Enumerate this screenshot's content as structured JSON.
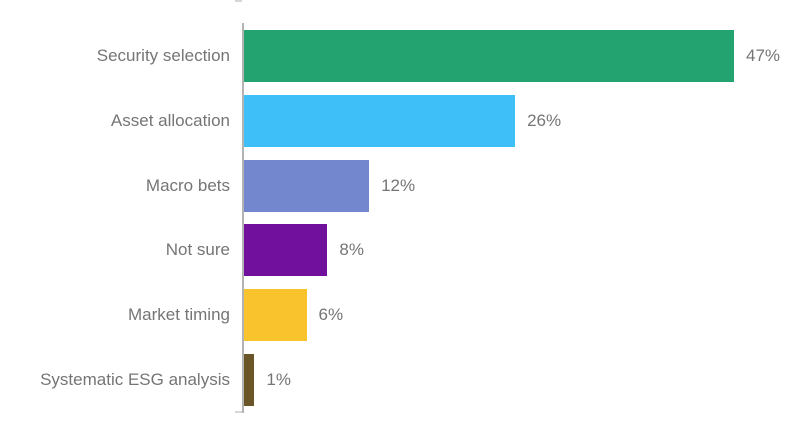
{
  "chart_data": {
    "type": "bar",
    "orientation": "horizontal",
    "title": "",
    "xlabel": "",
    "ylabel": "",
    "categories": [
      "Security selection",
      "Asset allocation",
      "Macro bets",
      "Not sure",
      "Market timing",
      "Systematic ESG analysis"
    ],
    "values": [
      47,
      26,
      12,
      8,
      6,
      1
    ],
    "value_labels": [
      "47%",
      "26%",
      "12%",
      "8%",
      "6%",
      "1%"
    ],
    "unit": "%",
    "xlim": [
      0,
      47
    ],
    "grid": false,
    "legend": false,
    "colors": [
      "#22A370",
      "#3EBFF8",
      "#7387CE",
      "#71109D",
      "#F9C32E",
      "#6A5627"
    ],
    "text_color": "#757575",
    "axis_color": "#b3b3b3",
    "tick_color": "#d6d6d6"
  }
}
